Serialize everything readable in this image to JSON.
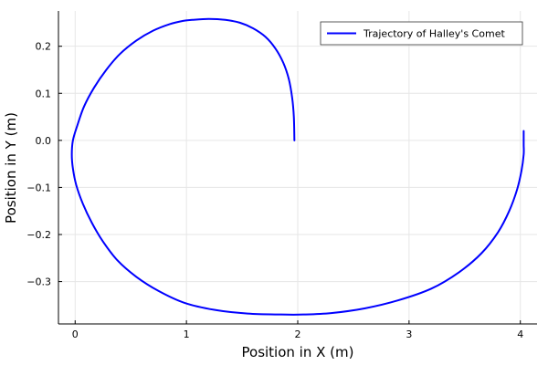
{
  "chart_data": {
    "type": "line",
    "title": "",
    "xlabel": "Position in X (m)",
    "ylabel": "Position in Y (m)",
    "xlim": [
      -0.15,
      4.15
    ],
    "ylim": [
      -0.39,
      0.275
    ],
    "xticks": [
      0,
      1,
      2,
      3,
      4
    ],
    "xtick_labels": [
      "0",
      "1",
      "2",
      "3",
      "4"
    ],
    "yticks": [
      -0.3,
      -0.2,
      -0.1,
      0.0,
      0.1,
      0.2
    ],
    "ytick_labels": [
      "−0.3",
      "−0.2",
      "−0.1",
      "0.0",
      "0.1",
      "0.2"
    ],
    "grid": true,
    "legend_position": "top-right",
    "series": [
      {
        "name": "Trajectory of Halley's Comet",
        "color": "#0000ff",
        "x": [
          1.97,
          1.965,
          1.95,
          1.92,
          1.87,
          1.8,
          1.71,
          1.6,
          1.48,
          1.35,
          1.2,
          1.05,
          0.97,
          0.85,
          0.7,
          0.55,
          0.4,
          0.28,
          0.17,
          0.08,
          0.02,
          -0.02,
          -0.03,
          -0.02,
          0.01,
          0.07,
          0.15,
          0.25,
          0.38,
          0.55,
          0.75,
          0.98,
          1.25,
          1.55,
          1.85,
          2.05,
          2.3,
          2.6,
          2.9,
          3.2,
          3.45,
          3.65,
          3.8,
          3.9,
          3.97,
          4.01,
          4.03,
          4.03,
          4.03,
          4.03
        ],
        "y": [
          0.0,
          0.05,
          0.09,
          0.13,
          0.165,
          0.195,
          0.22,
          0.238,
          0.25,
          0.256,
          0.258,
          0.256,
          0.254,
          0.247,
          0.233,
          0.212,
          0.183,
          0.15,
          0.112,
          0.072,
          0.032,
          0.0,
          -0.03,
          -0.06,
          -0.095,
          -0.135,
          -0.175,
          -0.215,
          -0.255,
          -0.29,
          -0.32,
          -0.345,
          -0.36,
          -0.368,
          -0.37,
          -0.37,
          -0.367,
          -0.357,
          -0.34,
          -0.315,
          -0.28,
          -0.24,
          -0.195,
          -0.15,
          -0.105,
          -0.065,
          -0.03,
          -0.01,
          0.005,
          0.02
        ]
      }
    ]
  }
}
